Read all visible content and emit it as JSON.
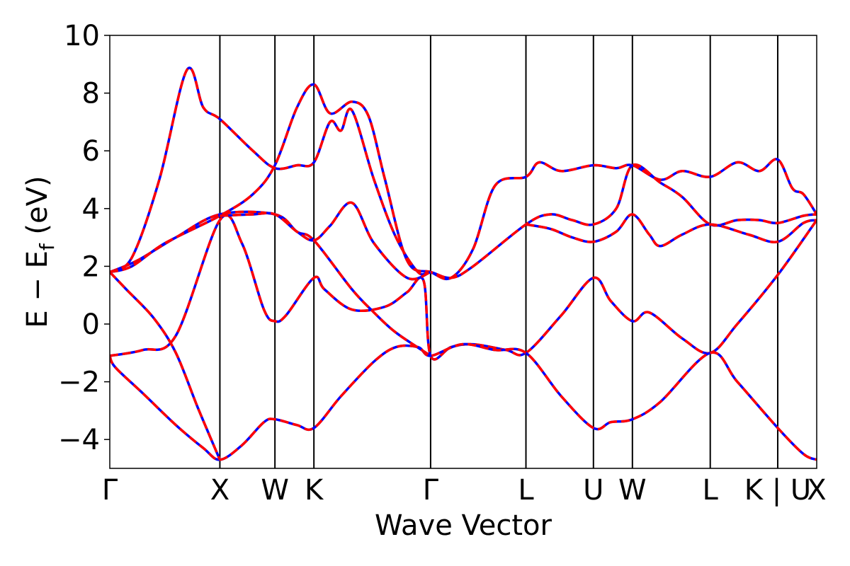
{
  "chart_data": {
    "type": "line",
    "title": "",
    "xlabel": "Wave Vector",
    "ylabel_parts": {
      "main": "E − E",
      "sub": "f",
      "unit": " (eV)"
    },
    "ylim": [
      -5,
      10
    ],
    "y_ticks": [
      -4,
      -2,
      0,
      2,
      4,
      6,
      8,
      10
    ],
    "y_tick_labels": [
      "−4",
      "−2",
      "0",
      "2",
      "4",
      "6",
      "8",
      "10"
    ],
    "k_points": [
      {
        "label": "Γ",
        "k": 0.0
      },
      {
        "label": "X",
        "k": 1.0
      },
      {
        "label": "W",
        "k": 1.5
      },
      {
        "label": "K",
        "k": 1.854
      },
      {
        "label": "Γ",
        "k": 2.914
      },
      {
        "label": "L",
        "k": 3.78
      },
      {
        "label": "U",
        "k": 4.393
      },
      {
        "label": "W",
        "k": 4.747
      },
      {
        "label": "L",
        "k": 5.454
      },
      {
        "label": "K | U",
        "k": 6.067
      },
      {
        "label": "X",
        "k": 6.421
      }
    ],
    "line_colors": {
      "series_a": "#0000ff",
      "series_b": "#ff0000"
    },
    "grid": false,
    "bands": [
      [
        [
          0,
          -1.1
        ],
        [
          0.3,
          -0.9
        ],
        [
          0.6,
          -0.4
        ],
        [
          1.0,
          3.6
        ],
        [
          1.2,
          2.8
        ],
        [
          1.4,
          0.5
        ],
        [
          1.5,
          0.1
        ],
        [
          1.6,
          0.3
        ],
        [
          1.854,
          1.6
        ],
        [
          1.95,
          1.2
        ],
        [
          2.2,
          0.5
        ],
        [
          2.5,
          0.6
        ],
        [
          2.7,
          1.1
        ],
        [
          2.85,
          1.5
        ],
        [
          2.914,
          -1.1
        ],
        [
          3.1,
          -0.8
        ],
        [
          3.3,
          -0.7
        ],
        [
          3.6,
          -0.9
        ],
        [
          3.78,
          -1.0
        ],
        [
          4.1,
          0.3
        ],
        [
          4.393,
          1.6
        ],
        [
          4.55,
          0.8
        ],
        [
          4.747,
          0.1
        ],
        [
          4.9,
          0.4
        ],
        [
          5.2,
          -0.5
        ],
        [
          5.454,
          -1.0
        ],
        [
          5.7,
          0.0
        ],
        [
          6.067,
          1.7
        ],
        [
          6.421,
          3.6
        ]
      ],
      [
        [
          0,
          -1.1
        ],
        [
          0.05,
          -1.5
        ],
        [
          0.3,
          -2.4
        ],
        [
          0.6,
          -3.5
        ],
        [
          0.85,
          -4.3
        ],
        [
          1.0,
          -4.7
        ],
        [
          1.2,
          -4.2
        ],
        [
          1.4,
          -3.4
        ],
        [
          1.5,
          -3.3
        ],
        [
          1.7,
          -3.5
        ],
        [
          1.854,
          -3.6
        ],
        [
          2.1,
          -2.5
        ],
        [
          2.4,
          -1.3
        ],
        [
          2.6,
          -0.8
        ],
        [
          2.8,
          -0.8
        ],
        [
          2.914,
          -1.1
        ],
        [
          3.2,
          -0.7
        ],
        [
          3.5,
          -0.9
        ],
        [
          3.78,
          -1.0
        ],
        [
          4.1,
          -2.5
        ],
        [
          4.393,
          -3.6
        ],
        [
          4.55,
          -3.4
        ],
        [
          4.747,
          -3.3
        ],
        [
          5.0,
          -2.7
        ],
        [
          5.454,
          -1.0
        ],
        [
          5.7,
          -2.0
        ],
        [
          6.067,
          -3.6
        ],
        [
          6.3,
          -4.5
        ],
        [
          6.421,
          -4.7
        ]
      ],
      [
        [
          0,
          1.8
        ],
        [
          0.15,
          1.2
        ],
        [
          0.4,
          0.2
        ],
        [
          0.6,
          -1.0
        ],
        [
          0.8,
          -2.9
        ],
        [
          1.0,
          -4.7
        ]
      ],
      [
        [
          0,
          1.8
        ],
        [
          0.25,
          2.2
        ],
        [
          0.6,
          3.0
        ],
        [
          1.0,
          3.8
        ],
        [
          1.5,
          3.8
        ],
        [
          1.7,
          3.2
        ],
        [
          1.854,
          2.9
        ],
        [
          2.2,
          1.2
        ],
        [
          2.4,
          0.4
        ],
        [
          2.6,
          -0.3
        ],
        [
          2.914,
          -1.1
        ]
      ],
      [
        [
          0,
          1.8
        ],
        [
          0.2,
          2.0
        ],
        [
          0.5,
          2.8
        ],
        [
          1.0,
          3.75
        ],
        [
          1.3,
          4.5
        ],
        [
          1.5,
          5.5
        ],
        [
          1.7,
          7.5
        ],
        [
          1.854,
          8.3
        ],
        [
          2.0,
          7.3
        ],
        [
          2.2,
          7.7
        ],
        [
          2.35,
          7.2
        ],
        [
          2.5,
          5.0
        ],
        [
          2.7,
          2.2
        ],
        [
          2.914,
          1.8
        ],
        [
          3.1,
          1.6
        ],
        [
          3.3,
          2.6
        ],
        [
          3.5,
          4.8
        ],
        [
          3.78,
          5.1
        ],
        [
          3.9,
          5.6
        ],
        [
          4.1,
          5.3
        ],
        [
          4.393,
          5.5
        ],
        [
          4.6,
          5.4
        ],
        [
          4.747,
          5.5
        ],
        [
          5.0,
          5.0
        ],
        [
          5.2,
          5.3
        ],
        [
          5.454,
          5.1
        ],
        [
          5.7,
          5.6
        ],
        [
          5.9,
          5.3
        ],
        [
          6.067,
          5.7
        ],
        [
          6.2,
          4.7
        ],
        [
          6.3,
          4.5
        ],
        [
          6.421,
          3.8
        ]
      ],
      [
        [
          0,
          1.8
        ],
        [
          0.2,
          2.3
        ],
        [
          0.45,
          5.0
        ],
        [
          0.7,
          8.8
        ],
        [
          0.85,
          7.5
        ],
        [
          1.0,
          7.1
        ],
        [
          1.3,
          6.0
        ],
        [
          1.5,
          5.4
        ],
        [
          1.7,
          5.5
        ],
        [
          1.854,
          5.6
        ],
        [
          2.0,
          7.0
        ],
        [
          2.1,
          6.7
        ],
        [
          2.2,
          7.4
        ],
        [
          2.4,
          5.0
        ],
        [
          2.6,
          3.0
        ],
        [
          2.8,
          1.8
        ],
        [
          2.914,
          1.8
        ],
        [
          3.1,
          1.6
        ],
        [
          3.3,
          2.0
        ],
        [
          3.78,
          3.45
        ],
        [
          4.0,
          3.8
        ],
        [
          4.2,
          3.6
        ],
        [
          4.393,
          3.45
        ],
        [
          4.6,
          4.0
        ],
        [
          4.747,
          5.5
        ],
        [
          5.0,
          4.9
        ],
        [
          5.2,
          4.4
        ],
        [
          5.454,
          3.45
        ],
        [
          5.7,
          3.6
        ],
        [
          5.9,
          3.6
        ],
        [
          6.067,
          3.5
        ],
        [
          6.3,
          3.75
        ],
        [
          6.421,
          3.8
        ]
      ],
      [
        [
          1.0,
          3.75
        ],
        [
          1.3,
          3.8
        ],
        [
          1.5,
          3.8
        ],
        [
          1.7,
          3.2
        ],
        [
          1.854,
          2.9
        ],
        [
          2.0,
          3.4
        ],
        [
          2.2,
          4.2
        ],
        [
          2.4,
          2.8
        ],
        [
          2.7,
          1.6
        ],
        [
          2.914,
          1.8
        ]
      ],
      [
        [
          3.78,
          3.45
        ],
        [
          4.0,
          3.3
        ],
        [
          4.2,
          3.0
        ],
        [
          4.393,
          2.85
        ],
        [
          4.6,
          3.2
        ],
        [
          4.747,
          3.8
        ],
        [
          4.9,
          3.1
        ],
        [
          5.0,
          2.7
        ],
        [
          5.2,
          3.1
        ],
        [
          5.454,
          3.45
        ],
        [
          5.8,
          3.1
        ],
        [
          6.067,
          2.85
        ],
        [
          6.3,
          3.5
        ],
        [
          6.421,
          3.6
        ]
      ]
    ]
  }
}
